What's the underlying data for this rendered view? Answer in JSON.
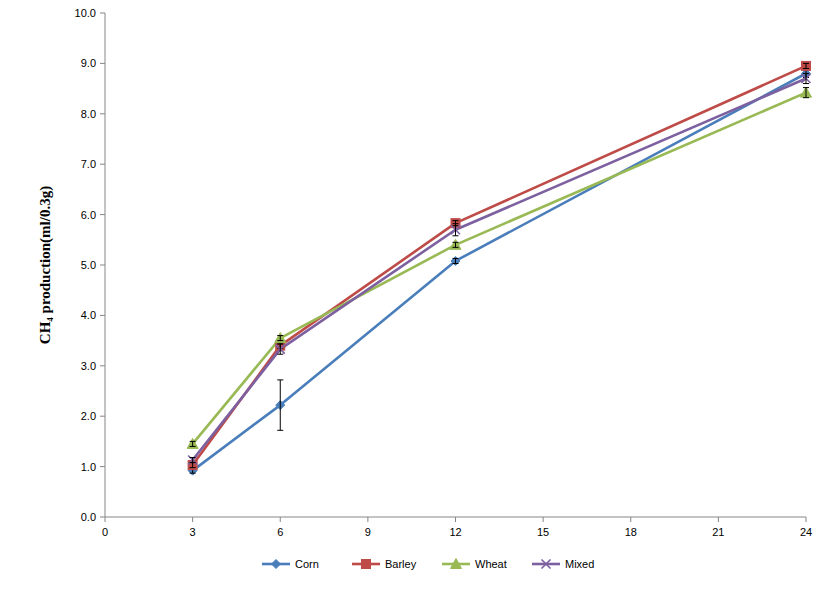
{
  "chart_data": {
    "type": "line",
    "y_label": "CH₄ production(ml/0.3g)",
    "x": [
      3,
      6,
      12,
      24
    ],
    "xlim": [
      0,
      24
    ],
    "xticks": [
      0,
      3,
      6,
      9,
      12,
      15,
      18,
      21,
      24
    ],
    "ylim": [
      0,
      10
    ],
    "yticks": [
      {
        "value": 0,
        "label": "0.0"
      },
      {
        "value": 1,
        "label": "1.0"
      },
      {
        "value": 2,
        "label": "2.0"
      },
      {
        "value": 3,
        "label": "3.0"
      },
      {
        "value": 4,
        "label": "4.0"
      },
      {
        "value": 5,
        "label": "5.0"
      },
      {
        "value": 6,
        "label": "6.0"
      },
      {
        "value": 7,
        "label": "7.0"
      },
      {
        "value": 8,
        "label": "8.0"
      },
      {
        "value": 9,
        "label": "9.0"
      },
      {
        "value": 10,
        "label": "10.0"
      }
    ],
    "grid": false,
    "legend": "bottom",
    "series": [
      {
        "name": "Corn",
        "color": "#4a7ebb",
        "marker": "diamond",
        "values": [
          0.92,
          2.22,
          5.08,
          8.8
        ],
        "errors": [
          0.05,
          0.5,
          0.05,
          0.08
        ]
      },
      {
        "name": "Barley",
        "color": "#be4b48",
        "marker": "square",
        "values": [
          1.03,
          3.4,
          5.83,
          8.95
        ],
        "errors": [
          0.05,
          0.05,
          0.05,
          0.05
        ]
      },
      {
        "name": "Wheat",
        "color": "#98b954",
        "marker": "triangle",
        "values": [
          1.45,
          3.55,
          5.4,
          8.42
        ],
        "errors": [
          0.05,
          0.05,
          0.05,
          0.1
        ]
      },
      {
        "name": "Mixed",
        "color": "#7d60a0",
        "marker": "x",
        "values": [
          1.13,
          3.33,
          5.7,
          8.7
        ],
        "errors": [
          0.05,
          0.1,
          0.12,
          0.1
        ]
      }
    ]
  }
}
